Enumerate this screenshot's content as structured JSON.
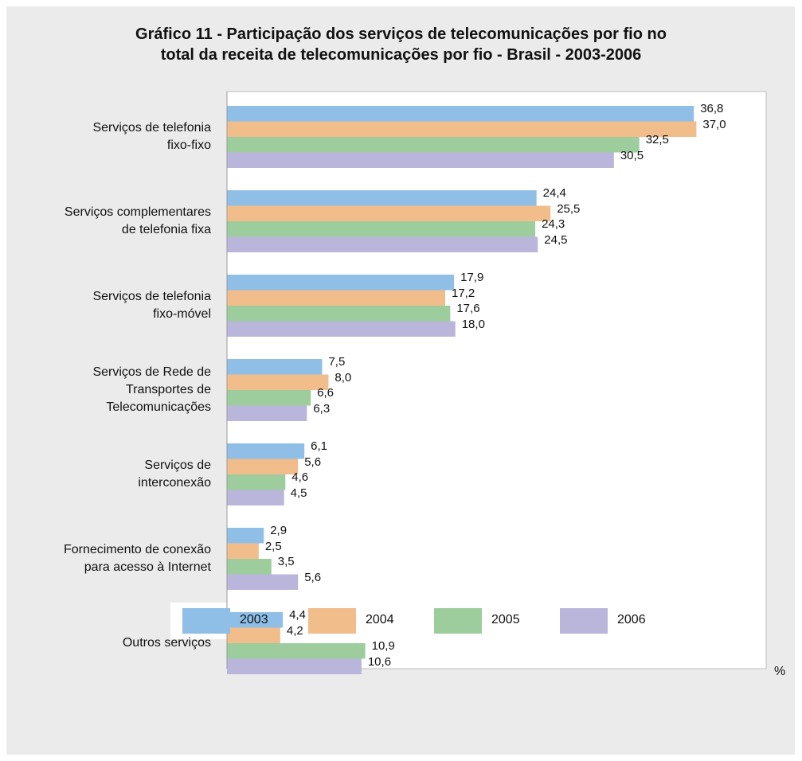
{
  "chart_data": {
    "type": "barh",
    "title": "Gráfico 11 - Participação  dos serviços de telecomunicações por fio no\ntotal da receita de telecomunicações por fio - Brasil - 2003-2006",
    "categories": [
      "Serviços de telefonia\nfixo-fixo",
      "Serviços complementares\nde telefonia fixa",
      "Serviços de telefonia\nfixo-móvel",
      "Serviços de Rede de\nTransportes de\nTelecomunicações",
      "Serviços de\ninterconexão",
      "Fornecimento de conexão\npara acesso à Internet",
      "Outros serviços"
    ],
    "series": [
      {
        "name": "2003",
        "color": "#8fbfe7",
        "values": [
          36.8,
          24.4,
          17.9,
          7.5,
          6.1,
          2.9,
          4.4
        ],
        "value_labels": [
          "36,8",
          "24,4",
          "17,9",
          "7,5",
          "6,1",
          "2,9",
          "4,4"
        ]
      },
      {
        "name": "2004",
        "color": "#f1bd8b",
        "values": [
          37.0,
          25.5,
          17.2,
          8.0,
          5.6,
          2.5,
          4.2
        ],
        "value_labels": [
          "37,0",
          "25,5",
          "17,2",
          "8,0",
          "5,6",
          "2,5",
          "4,2"
        ]
      },
      {
        "name": "2005",
        "color": "#9dcd9d",
        "values": [
          32.5,
          24.3,
          17.6,
          6.6,
          4.6,
          3.5,
          10.9
        ],
        "value_labels": [
          "32,5",
          "24,3",
          "17,6",
          "6,6",
          "4,6",
          "3,5",
          "10,9"
        ]
      },
      {
        "name": "2006",
        "color": "#bab5db",
        "values": [
          30.5,
          24.5,
          18.0,
          6.3,
          4.5,
          5.6,
          10.6
        ],
        "value_labels": [
          "30,5",
          "24,5",
          "18,0",
          "6,3",
          "4,5",
          "5,6",
          "10,6"
        ]
      }
    ],
    "x_label": "%",
    "xlim": [
      0,
      42.5
    ]
  }
}
